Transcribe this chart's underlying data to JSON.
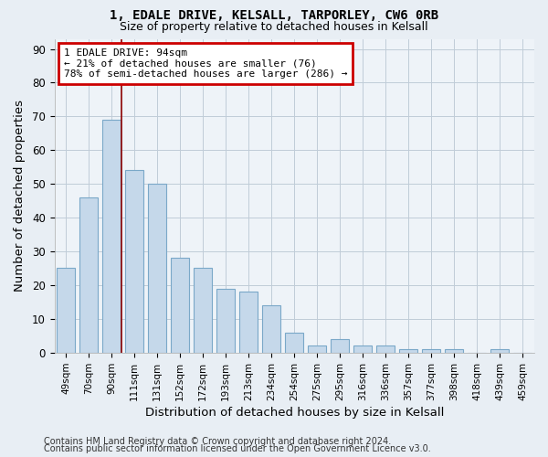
{
  "title1": "1, EDALE DRIVE, KELSALL, TARPORLEY, CW6 0RB",
  "title2": "Size of property relative to detached houses in Kelsall",
  "xlabel": "Distribution of detached houses by size in Kelsall",
  "ylabel": "Number of detached properties",
  "categories": [
    "49sqm",
    "70sqm",
    "90sqm",
    "111sqm",
    "131sqm",
    "152sqm",
    "172sqm",
    "193sqm",
    "213sqm",
    "234sqm",
    "254sqm",
    "275sqm",
    "295sqm",
    "316sqm",
    "336sqm",
    "357sqm",
    "377sqm",
    "398sqm",
    "418sqm",
    "439sqm",
    "459sqm"
  ],
  "values": [
    25,
    46,
    69,
    54,
    50,
    28,
    25,
    19,
    18,
    14,
    6,
    2,
    4,
    2,
    2,
    1,
    1,
    1,
    0,
    1,
    0
  ],
  "bar_color": "#c5d8ea",
  "bar_edge_color": "#7aa8c8",
  "annotation_text": "1 EDALE DRIVE: 94sqm\n← 21% of detached houses are smaller (76)\n78% of semi-detached houses are larger (286) →",
  "annotation_box_color": "white",
  "annotation_box_edge_color": "#cc0000",
  "red_line_color": "#8b0000",
  "ylim": [
    0,
    93
  ],
  "yticks": [
    0,
    10,
    20,
    30,
    40,
    50,
    60,
    70,
    80,
    90
  ],
  "footer1": "Contains HM Land Registry data © Crown copyright and database right 2024.",
  "footer2": "Contains public sector information licensed under the Open Government Licence v3.0.",
  "background_color": "#e8eef4",
  "plot_background": "#eef3f8",
  "grid_color": "#c0ccd8"
}
